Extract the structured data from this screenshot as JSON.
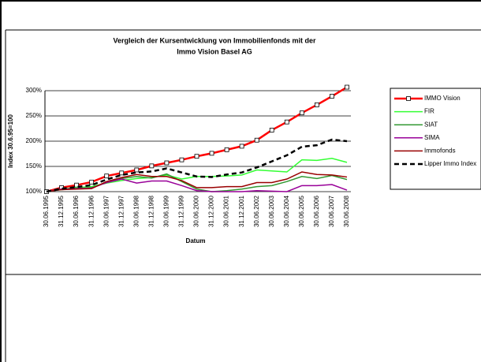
{
  "chart_data": {
    "type": "line",
    "title": [
      "Vergleich der Kursentwicklung von Immobilienfonds mit der",
      "Immo Vision Basel AG"
    ],
    "x_label": "Datum",
    "y_label": "Index 30.6.95=100",
    "categories": [
      "30.06.1995",
      "31.12.1995",
      "30.06.1996",
      "31.12.1996",
      "30.06.1997",
      "31.12.1997",
      "30.06.1998",
      "31.12.1998",
      "30.06.1999",
      "31.12.1999",
      "30.06.2000",
      "31.12.2000",
      "30.06.2001",
      "31.12.2001",
      "30.06.2002",
      "30.06.2003",
      "30.06.2004",
      "30.06.2005",
      "30.06.2006",
      "30.06.2007",
      "30.06.2008"
    ],
    "series": [
      {
        "name": "IMMO Vision",
        "color": "#ff0000",
        "marker": "square",
        "values": [
          100,
          108,
          113,
          119,
          131,
          137,
          143,
          151,
          157,
          163,
          170,
          176,
          183,
          190,
          202,
          222,
          238,
          256,
          272,
          289,
          307
        ]
      },
      {
        "name": "FIR",
        "color": "#33ff33",
        "values": [
          100,
          105,
          108,
          110,
          117,
          122,
          126,
          128,
          133,
          125,
          130,
          130,
          131,
          133,
          143,
          141,
          139,
          163,
          162,
          166,
          158
        ]
      },
      {
        "name": "SIAT",
        "color": "#339933",
        "values": [
          100,
          104,
          106,
          108,
          118,
          126,
          130,
          127,
          135,
          120,
          105,
          100,
          102,
          105,
          110,
          112,
          120,
          130,
          126,
          132,
          124
        ]
      },
      {
        "name": "SIMA",
        "color": "#990099",
        "values": [
          100,
          105,
          106,
          107,
          118,
          125,
          117,
          121,
          121,
          112,
          102,
          100,
          100,
          100,
          102,
          101,
          100,
          112,
          112,
          114,
          103
        ]
      },
      {
        "name": "Immofonds",
        "color": "#990000",
        "values": [
          100,
          104,
          105,
          106,
          120,
          128,
          134,
          130,
          130,
          122,
          108,
          108,
          110,
          110,
          118,
          118,
          125,
          139,
          134,
          133,
          129
        ]
      },
      {
        "name": "Lipper Immo Index",
        "color": "#000000",
        "dash": true,
        "values": [
          100,
          106,
          109,
          113,
          124,
          133,
          138,
          140,
          146,
          138,
          130,
          129,
          134,
          138,
          148,
          160,
          172,
          189,
          192,
          203,
          200
        ]
      }
    ],
    "ylim": [
      100,
      300
    ],
    "yticks": [
      {
        "value": 100,
        "label": "100%"
      },
      {
        "value": 150,
        "label": "150%"
      },
      {
        "value": 200,
        "label": "200%"
      },
      {
        "value": 250,
        "label": "250%"
      },
      {
        "value": 300,
        "label": "300%"
      }
    ],
    "grid": true,
    "legend": "right"
  }
}
